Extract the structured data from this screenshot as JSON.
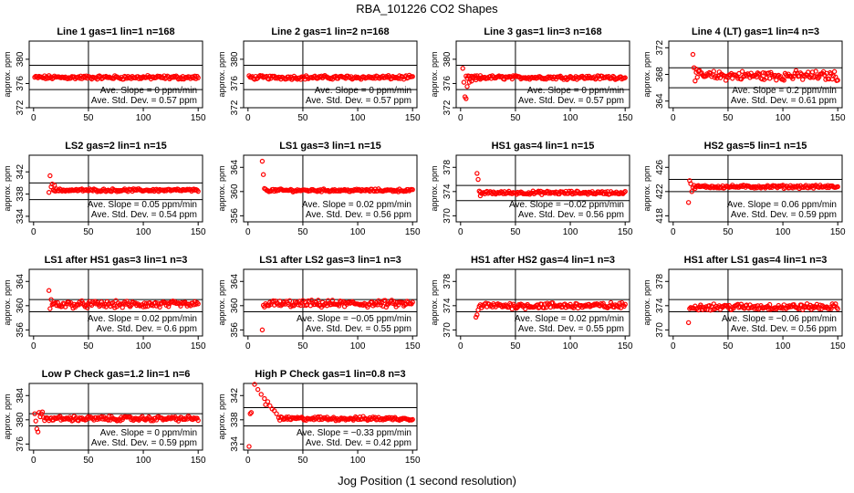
{
  "title": "RBA_101226  CO2 Shapes",
  "xlabel": "Jog Position (1 second resolution)",
  "ylabel": "approx. ppm",
  "colors": {
    "points": "#ff0000",
    "frame": "#000000"
  },
  "chart_data": [
    {
      "type": "scatter",
      "title": "Line 1 gas=1 lin=1 n=168",
      "ylim": [
        372,
        383
      ],
      "yticks": [
        372,
        376,
        380
      ],
      "xticks": [
        0,
        50,
        100,
        150
      ],
      "xlim": [
        -4,
        154
      ],
      "hlines": [
        379,
        375
      ],
      "vline": 50,
      "base": 377,
      "noise": 0.25,
      "start": 1,
      "spikes": [],
      "slope_label": "Ave. Slope = 0 ppm/min",
      "sd_label": "Ave. Std. Dev. = 0.57 ppm"
    },
    {
      "type": "scatter",
      "title": "Line 2 gas=1 lin=2 n=168",
      "ylim": [
        372,
        383
      ],
      "yticks": [
        372,
        376,
        380
      ],
      "xticks": [
        0,
        50,
        100,
        150
      ],
      "xlim": [
        -4,
        154
      ],
      "hlines": [
        379,
        375
      ],
      "vline": 50,
      "base": 377,
      "noise": 0.25,
      "start": 1,
      "spikes": [],
      "slope_label": "Ave. Slope = 0 ppm/min",
      "sd_label": "Ave. Std. Dev. = 0.57 ppm"
    },
    {
      "type": "scatter",
      "title": "Line 3 gas=1 lin=3 n=168",
      "ylim": [
        372,
        383
      ],
      "yticks": [
        372,
        376,
        380
      ],
      "xticks": [
        0,
        50,
        100,
        150
      ],
      "xlim": [
        -4,
        154
      ],
      "hlines": [
        379,
        375
      ],
      "vline": 50,
      "base": 377,
      "noise": 0.25,
      "start": 5,
      "spikes": [
        [
          2,
          378.5
        ],
        [
          3,
          376.2
        ],
        [
          4,
          373.8
        ],
        [
          5,
          373.5
        ],
        [
          6,
          375.5
        ],
        [
          8,
          376.2
        ],
        [
          10,
          376.4
        ],
        [
          14,
          376.6
        ],
        [
          18,
          376.7
        ]
      ],
      "slope_label": "Ave. Slope = 0 ppm/min",
      "sd_label": "Ave. Std. Dev. = 0.57 ppm"
    },
    {
      "type": "scatter",
      "title": "Line 4 (LT) gas=1 lin=4 n=3",
      "ylim": [
        363,
        373
      ],
      "yticks": [
        364,
        368,
        372
      ],
      "xticks": [
        0,
        50,
        100,
        150
      ],
      "xlim": [
        -4,
        154
      ],
      "hlines": [
        369,
        366
      ],
      "vline": 50,
      "base": 367.8,
      "noise": 0.55,
      "start": 20,
      "spikes": [
        [
          18,
          371
        ],
        [
          19,
          369
        ],
        [
          21,
          368.8
        ],
        [
          23,
          368.5
        ]
      ],
      "slope_label": "Ave. Slope = 0.2 ppm/min",
      "sd_label": "Ave. Std. Dev. = 0.61 ppm"
    },
    {
      "type": "scatter",
      "title": "LS2 gas=2 lin=1 n=15",
      "ylim": [
        333,
        345
      ],
      "yticks": [
        334,
        338,
        342
      ],
      "xticks": [
        0,
        50,
        100,
        150
      ],
      "xlim": [
        -4,
        154
      ],
      "hlines": [
        340,
        337
      ],
      "vline": 50,
      "base": 338.7,
      "noise": 0.2,
      "start": 18,
      "spikes": [
        [
          14,
          338.3
        ],
        [
          15,
          341.3
        ],
        [
          16,
          339.3
        ],
        [
          17,
          339.8
        ],
        [
          19,
          339.6
        ]
      ],
      "slope_label": "Ave. Slope = 0.05 ppm/min",
      "sd_label": "Ave. Std. Dev. = 0.54 ppm"
    },
    {
      "type": "scatter",
      "title": "LS1 gas=3 lin=1 n=15",
      "ylim": [
        355,
        366
      ],
      "yticks": [
        356,
        360,
        364
      ],
      "xticks": [
        0,
        50,
        100,
        150
      ],
      "xlim": [
        -4,
        154
      ],
      "hlines": [],
      "vline": 50,
      "base": 360.2,
      "noise": 0.18,
      "start": 16,
      "spikes": [
        [
          13,
          365
        ],
        [
          14,
          362.8
        ],
        [
          15,
          360.5
        ]
      ],
      "slope_label": "Ave. Slope = 0.02 ppm/min",
      "sd_label": "Ave. Std. Dev. = 0.56 ppm"
    },
    {
      "type": "scatter",
      "title": "HS1 gas=4 lin=1 n=15",
      "ylim": [
        369,
        380
      ],
      "yticks": [
        370,
        374,
        378
      ],
      "xticks": [
        0,
        50,
        100,
        150
      ],
      "xlim": [
        -4,
        154
      ],
      "hlines": [
        375,
        372.5
      ],
      "vline": 50,
      "base": 373.8,
      "noise": 0.22,
      "start": 17,
      "spikes": [
        [
          15,
          377
        ],
        [
          16,
          376
        ],
        [
          18,
          373.3
        ]
      ],
      "slope_label": "Ave. Slope = −0.02 ppm/min",
      "sd_label": "Ave. Std. Dev. = 0.56 ppm"
    },
    {
      "type": "scatter",
      "title": "HS2 gas=5 lin=1 n=15",
      "ylim": [
        417,
        428
      ],
      "yticks": [
        418,
        422,
        426
      ],
      "xticks": [
        0,
        50,
        100,
        150
      ],
      "xlim": [
        -4,
        154
      ],
      "hlines": [
        424,
        422
      ],
      "vline": 50,
      "base": 422.8,
      "noise": 0.2,
      "start": 18,
      "spikes": [
        [
          14,
          420.2
        ],
        [
          15,
          423.8
        ],
        [
          16,
          423.3
        ],
        [
          17,
          422
        ]
      ],
      "slope_label": "Ave. Slope = 0.06 ppm/min",
      "sd_label": "Ave. Std. Dev. = 0.59 ppm"
    },
    {
      "type": "scatter",
      "title": "LS1 after HS1 gas=3 lin=1 n=3",
      "ylim": [
        355,
        366
      ],
      "yticks": [
        356,
        360,
        364
      ],
      "xticks": [
        0,
        50,
        100,
        150
      ],
      "xlim": [
        -4,
        154
      ],
      "hlines": [
        361,
        359
      ],
      "vline": 50,
      "base": 360.2,
      "noise": 0.45,
      "start": 18,
      "spikes": [
        [
          14,
          362.5
        ],
        [
          15,
          359.5
        ],
        [
          16,
          361
        ],
        [
          17,
          360.2
        ]
      ],
      "slope_label": "Ave. Slope = 0.02 ppm/min",
      "sd_label": "Ave. Std. Dev. = 0.6 ppm"
    },
    {
      "type": "scatter",
      "title": "LS1 after LS2 gas=3 lin=1 n=3",
      "ylim": [
        355,
        366
      ],
      "yticks": [
        356,
        360,
        364
      ],
      "xticks": [
        0,
        50,
        100,
        150
      ],
      "xlim": [
        -4,
        154
      ],
      "hlines": [
        361,
        359
      ],
      "vline": 50,
      "base": 360.3,
      "noise": 0.45,
      "start": 14,
      "spikes": [
        [
          13,
          356
        ]
      ],
      "slope_label": "Ave. Slope = −0.05 ppm/min",
      "sd_label": "Ave. Std. Dev. = 0.55 ppm"
    },
    {
      "type": "scatter",
      "title": "HS1 after HS2 gas=4 lin=1 n=3",
      "ylim": [
        369,
        380
      ],
      "yticks": [
        370,
        374,
        378
      ],
      "xticks": [
        0,
        50,
        100,
        150
      ],
      "xlim": [
        -4,
        154
      ],
      "hlines": [
        375,
        373
      ],
      "vline": 50,
      "base": 374,
      "noise": 0.4,
      "start": 17,
      "spikes": [
        [
          14,
          372.1
        ],
        [
          15,
          372.5
        ],
        [
          16,
          373.3
        ]
      ],
      "slope_label": "Ave. Slope = 0.02 ppm/min",
      "sd_label": "Ave. Std. Dev. = 0.55 ppm"
    },
    {
      "type": "scatter",
      "title": "HS1 after LS1 gas=4 lin=1 n=3",
      "ylim": [
        369,
        380
      ],
      "yticks": [
        370,
        374,
        378
      ],
      "xticks": [
        0,
        50,
        100,
        150
      ],
      "xlim": [
        -4,
        154
      ],
      "hlines": [
        375,
        373
      ],
      "vline": 50,
      "base": 373.8,
      "noise": 0.4,
      "start": 16,
      "spikes": [
        [
          14,
          371.2
        ],
        [
          15,
          373.5
        ]
      ],
      "slope_label": "Ave. Slope = −0.06 ppm/min",
      "sd_label": "Ave. Std. Dev. = 0.56 ppm"
    },
    {
      "type": "scatter",
      "title": "Low P Check gas=1.2 lin=1 n=6",
      "ylim": [
        375,
        386
      ],
      "yticks": [
        376,
        380,
        384
      ],
      "xticks": [
        0,
        50,
        100,
        150
      ],
      "xlim": [
        -4,
        154
      ],
      "hlines": [
        381,
        379
      ],
      "vline": 50,
      "base": 380.2,
      "noise": 0.3,
      "start": 9,
      "spikes": [
        [
          1,
          381
        ],
        [
          2,
          379.8
        ],
        [
          3,
          378.5
        ],
        [
          4,
          378
        ],
        [
          5,
          381.2
        ],
        [
          6,
          380.5
        ],
        [
          7,
          381
        ],
        [
          8,
          381.3
        ]
      ],
      "slope_label": "Ave. Slope = 0 ppm/min",
      "sd_label": "Ave. Std. Dev. = 0.59 ppm"
    },
    {
      "type": "scatter",
      "title": "High P Check gas=1 lin=0.8 n=3",
      "ylim": [
        333,
        344
      ],
      "yticks": [
        334,
        338,
        342
      ],
      "xticks": [
        0,
        50,
        100,
        150
      ],
      "xlim": [
        -4,
        154
      ],
      "hlines": [
        340,
        337
      ],
      "vline": 50,
      "base": 338.2,
      "noise": 0.25,
      "start": 28,
      "spikes": [
        [
          1,
          333.6
        ],
        [
          2,
          339
        ],
        [
          3,
          339.2
        ],
        [
          6,
          344
        ],
        [
          9,
          343
        ],
        [
          12,
          342.2
        ],
        [
          15,
          341.5
        ],
        [
          16,
          340.5
        ],
        [
          18,
          341
        ],
        [
          20,
          340.3
        ],
        [
          22,
          339.8
        ],
        [
          24,
          339.5
        ],
        [
          26,
          339
        ]
      ],
      "slope_label": "Ave. Slope = −0.33 ppm/min",
      "sd_label": "Ave. Std. Dev. = 0.42 ppm"
    }
  ]
}
